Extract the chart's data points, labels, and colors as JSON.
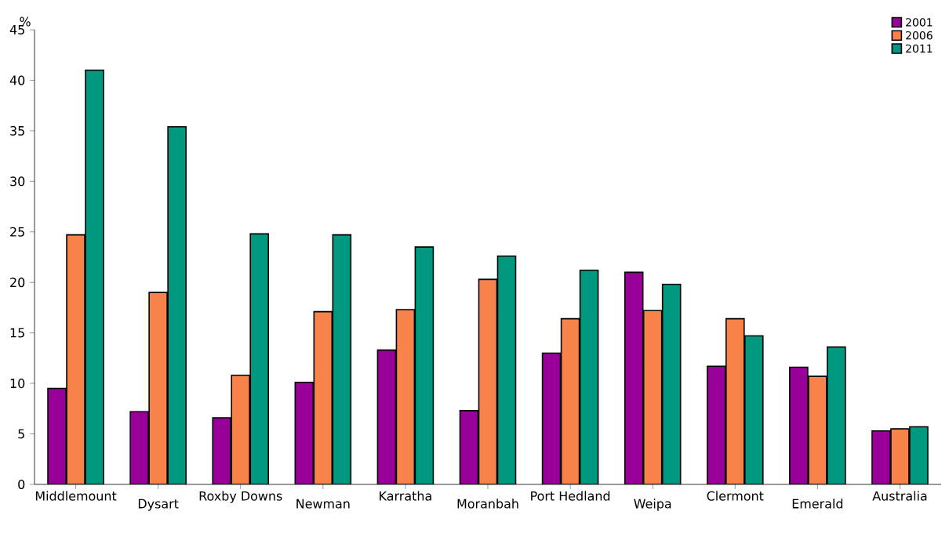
{
  "chart_data": {
    "type": "bar",
    "ylabel": "%",
    "categories": [
      "Middlemount",
      "Dysart",
      "Roxby Downs",
      "Newman",
      "Karratha",
      "Moranbah",
      "Port Hedland",
      "Weipa",
      "Clermont",
      "Emerald",
      "Australia"
    ],
    "series": [
      {
        "name": "2001",
        "color": "#990099",
        "values": [
          9.5,
          7.2,
          6.6,
          10.1,
          13.3,
          7.3,
          13.0,
          21.0,
          11.7,
          11.6,
          5.3
        ]
      },
      {
        "name": "2006",
        "color": "#f7834a",
        "values": [
          24.7,
          19.0,
          10.8,
          17.1,
          17.3,
          20.3,
          16.4,
          17.2,
          16.4,
          10.7,
          5.5
        ]
      },
      {
        "name": "2011",
        "color": "#009980",
        "values": [
          41.0,
          35.4,
          24.8,
          24.7,
          23.5,
          22.6,
          21.2,
          19.8,
          14.7,
          13.6,
          5.7
        ]
      }
    ],
    "ylim": [
      0,
      45
    ],
    "yticks": [
      0,
      5,
      10,
      15,
      20,
      25,
      30,
      35,
      40,
      45
    ],
    "legend": "top right"
  }
}
